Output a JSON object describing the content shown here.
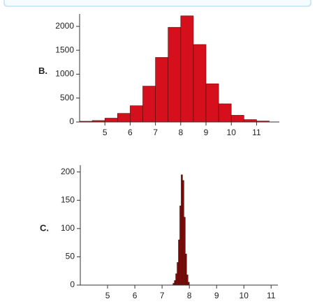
{
  "chart_data": [
    {
      "type": "histogram",
      "label": "B.",
      "bins": [
        4,
        4.5,
        5,
        5.5,
        6,
        6.5,
        7,
        7.5,
        8,
        8.5,
        9,
        9.5,
        10,
        10.5,
        11,
        11.5
      ],
      "values": [
        15,
        30,
        80,
        180,
        340,
        750,
        1350,
        1980,
        2220,
        1620,
        800,
        380,
        140,
        50,
        20
      ],
      "color": "#d50f1b",
      "edge": "#5a0a0a",
      "xlim": [
        4,
        11.9
      ],
      "xticks": [
        5,
        6,
        7,
        8,
        9,
        10,
        11
      ],
      "ylim": [
        0,
        2260
      ],
      "yticks": [
        0,
        500,
        1000,
        1500,
        2000
      ]
    },
    {
      "type": "histogram",
      "label": "C.",
      "bins": [
        7.4,
        7.45,
        7.5,
        7.55,
        7.6,
        7.65,
        7.7,
        7.75,
        7.8,
        7.85,
        7.9,
        7.95,
        8
      ],
      "values": [
        3,
        8,
        20,
        40,
        80,
        140,
        195,
        185,
        120,
        55,
        18,
        5
      ],
      "color": "#7c1512",
      "edge": "#3a0806",
      "xlim": [
        4,
        11.25
      ],
      "xticks": [
        5,
        6,
        7,
        8,
        9,
        10,
        11
      ],
      "ylim": [
        0,
        212
      ],
      "yticks": [
        0,
        50,
        100,
        150,
        200
      ]
    }
  ]
}
